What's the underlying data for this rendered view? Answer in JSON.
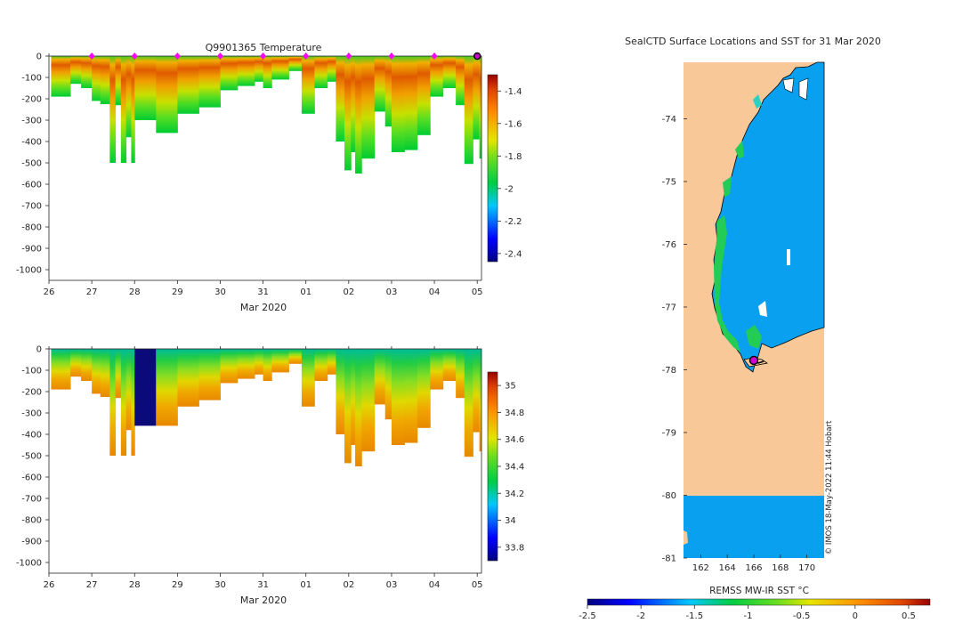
{
  "chart_data": [
    {
      "type": "heatmap",
      "panel": "temperature-profile",
      "title": "Q9901365  Temperature",
      "xlabel": "Mar 2020",
      "x_ticks": [
        "26",
        "27",
        "28",
        "29",
        "30",
        "31",
        "01",
        "02",
        "03",
        "04",
        "05"
      ],
      "x_tick_days": [
        26,
        27,
        28,
        29,
        30,
        31,
        32,
        33,
        34,
        35,
        36
      ],
      "xlim": [
        26,
        36.1
      ],
      "ylim": [
        -1050,
        0
      ],
      "y_ticks": [
        0,
        -100,
        -200,
        -300,
        -400,
        -500,
        -600,
        -700,
        -800,
        -900,
        -1000
      ],
      "y_tick_labels": [
        "0",
        "-100",
        "-200",
        "-300",
        "-400",
        "-500",
        "-600",
        "-700",
        "-800",
        "-900",
        "-1000"
      ],
      "colorbar": {
        "range": [
          -2.45,
          -1.3
        ],
        "ticks": [
          -1.4,
          -1.6,
          -1.8,
          -2,
          -2.2,
          -2.4
        ],
        "tick_labels": [
          "-1.4",
          "-1.6",
          "-1.8",
          "-2",
          "-2.2",
          "-2.4"
        ]
      },
      "profile_markers_days": [
        27,
        28,
        29,
        30,
        31,
        32,
        33,
        34,
        35
      ],
      "current_position_day": 36,
      "profiles": [
        {
          "day": 26.05,
          "depth": -190
        },
        {
          "day": 26.5,
          "depth": -130
        },
        {
          "day": 26.75,
          "depth": -150
        },
        {
          "day": 27.0,
          "depth": -210
        },
        {
          "day": 27.2,
          "depth": -225
        },
        {
          "day": 27.42,
          "depth": -500
        },
        {
          "day": 27.55,
          "depth": -230
        },
        {
          "day": 27.68,
          "depth": -500
        },
        {
          "day": 27.8,
          "depth": -380
        },
        {
          "day": 27.92,
          "depth": -500
        },
        {
          "day": 28.0,
          "depth": -300
        },
        {
          "day": 28.5,
          "depth": -360
        },
        {
          "day": 29.0,
          "depth": -270
        },
        {
          "day": 29.5,
          "depth": -240
        },
        {
          "day": 30.0,
          "depth": -160
        },
        {
          "day": 30.4,
          "depth": -140
        },
        {
          "day": 30.8,
          "depth": -120
        },
        {
          "day": 31.0,
          "depth": -150
        },
        {
          "day": 31.2,
          "depth": -110
        },
        {
          "day": 31.6,
          "depth": -70
        },
        {
          "day": 31.9,
          "depth": -270
        },
        {
          "day": 32.2,
          "depth": -150
        },
        {
          "day": 32.5,
          "depth": -120
        },
        {
          "day": 32.7,
          "depth": -400
        },
        {
          "day": 32.9,
          "depth": -535
        },
        {
          "day": 33.05,
          "depth": -450
        },
        {
          "day": 33.15,
          "depth": -550
        },
        {
          "day": 33.3,
          "depth": -480
        },
        {
          "day": 33.6,
          "depth": -260
        },
        {
          "day": 33.85,
          "depth": -330
        },
        {
          "day": 34.0,
          "depth": -450
        },
        {
          "day": 34.3,
          "depth": -440
        },
        {
          "day": 34.6,
          "depth": -370
        },
        {
          "day": 34.9,
          "depth": -190
        },
        {
          "day": 35.2,
          "depth": -150
        },
        {
          "day": 35.5,
          "depth": -230
        },
        {
          "day": 35.7,
          "depth": -505
        },
        {
          "day": 35.9,
          "depth": -390
        },
        {
          "day": 36.05,
          "depth": -480
        }
      ]
    },
    {
      "type": "heatmap",
      "panel": "salinity-profile",
      "title": "",
      "xlabel": "Mar 2020",
      "x_ticks": [
        "26",
        "27",
        "28",
        "29",
        "30",
        "31",
        "01",
        "02",
        "03",
        "04",
        "05"
      ],
      "ylim": [
        -1050,
        0
      ],
      "y_tick_labels": [
        "0",
        "-100",
        "-200",
        "-300",
        "-400",
        "-500",
        "-600",
        "-700",
        "-800",
        "-900",
        "-1000"
      ],
      "colorbar": {
        "range": [
          33.7,
          35.1
        ],
        "ticks": [
          35,
          34.8,
          34.6,
          34.4,
          34.2,
          34,
          33.8
        ],
        "tick_labels": [
          "35",
          "34.8",
          "34.6",
          "34.4",
          "34.2",
          "34",
          "33.8"
        ]
      },
      "missing_block": {
        "day_start": 28.0,
        "day_end": 28.5,
        "depth": -360
      }
    },
    {
      "type": "heatmap",
      "panel": "sst-map",
      "title": "SealCTD Surface Locations and SST for 31 Mar 2020",
      "x_ticks": [
        "162",
        "164",
        "166",
        "168",
        "170"
      ],
      "x_tick_values": [
        162,
        164,
        166,
        168,
        170
      ],
      "xlim": [
        160.7,
        171.3
      ],
      "y_ticks": [
        "-74",
        "-75",
        "-76",
        "-77",
        "-78",
        "-79",
        "-80",
        "-81"
      ],
      "y_tick_values": [
        -74,
        -75,
        -76,
        -77,
        -78,
        -79,
        -80,
        -81
      ],
      "ylim": [
        -73.1,
        -81.0
      ],
      "seal_location": {
        "lon": 166.0,
        "lat": -77.85
      },
      "colorbar": {
        "label": "REMSS MW-IR SST °C",
        "range": [
          -2.5,
          0.7
        ],
        "ticks": [
          -2.5,
          -2,
          -1.5,
          -1,
          -0.5,
          0,
          0.5
        ],
        "tick_labels": [
          "-2.5",
          "-2",
          "-1.5",
          "-1",
          "-0.5",
          "0",
          "0.5"
        ]
      },
      "credit": "© IMOS 18-May-2022 11:44 Hobart"
    }
  ]
}
